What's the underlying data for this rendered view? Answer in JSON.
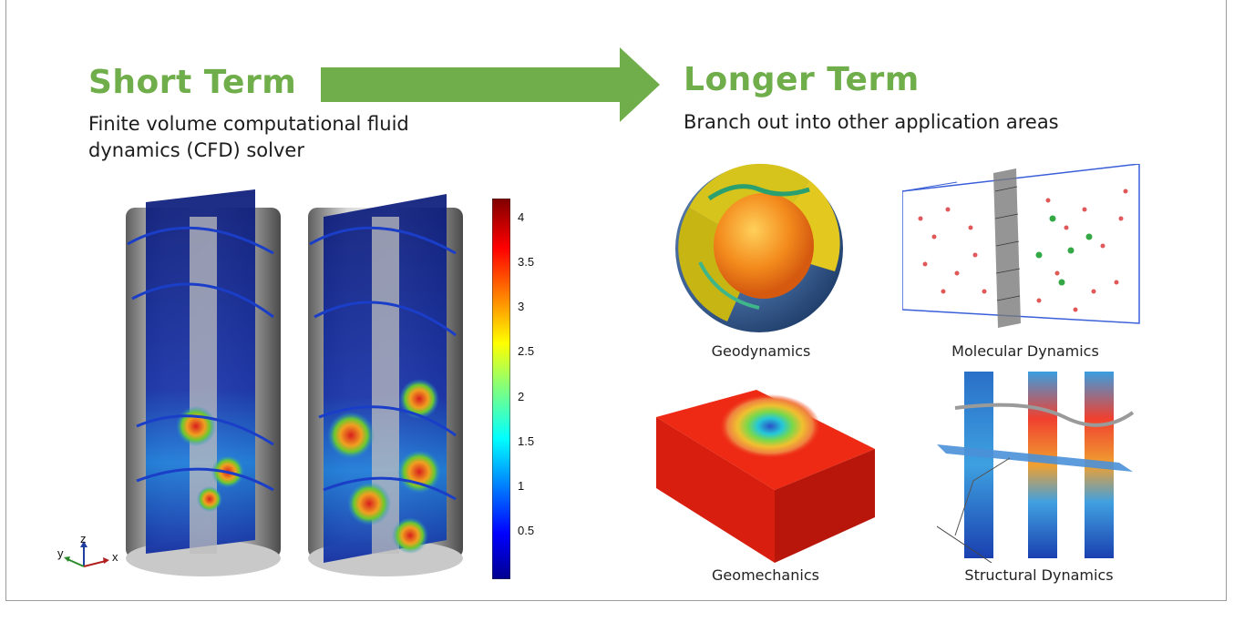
{
  "colors": {
    "accent": "#6fae4a"
  },
  "left": {
    "heading": "Short Term",
    "subtitle_line1": "Finite volume computational fluid",
    "subtitle_line2": "dynamics (CFD) solver",
    "colorbar_ticks": [
      "4",
      "3.5",
      "3",
      "2.5",
      "2",
      "1.5",
      "1",
      "0.5"
    ],
    "axes_labels": {
      "z": "z",
      "y": "y",
      "x": "x"
    }
  },
  "right": {
    "heading": "Longer Term",
    "subtitle": "Branch out into other application areas",
    "captions": {
      "geodynamics": "Geodynamics",
      "molecular": "Molecular Dynamics",
      "geomechanics": "Geomechanics",
      "structural": "Structural Dynamics"
    }
  }
}
